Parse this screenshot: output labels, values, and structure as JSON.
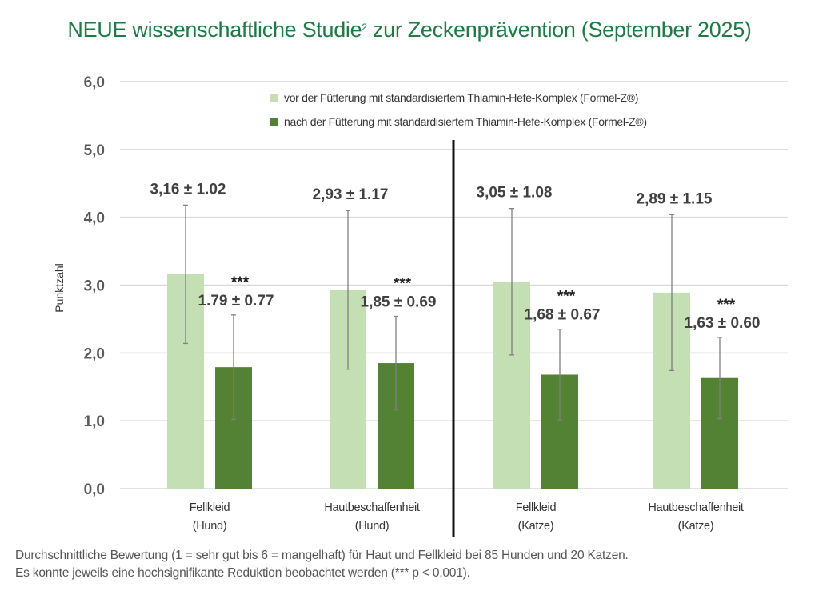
{
  "title": {
    "text": "NEUE wissenschaftliche Studie",
    "superscript": "2",
    "text_after": " zur Zeckenprävention (September 2025)"
  },
  "colors": {
    "title": "#1f7a46",
    "before": "#c4dfb3",
    "after": "#548235",
    "grid": "#d9d9d9",
    "divider": "#111111",
    "label": "#404040"
  },
  "chart_data": {
    "type": "bar",
    "title": "NEUE wissenschaftliche Studie² zur Zeckenprävention (September 2025)",
    "ylabel": "Punktzahl",
    "xlabel": "",
    "ylim": [
      0,
      6
    ],
    "yticks": [
      "0,0",
      "1,0",
      "2,0",
      "3,0",
      "4,0",
      "5,0",
      "6,0"
    ],
    "ytick_values": [
      0,
      1,
      2,
      3,
      4,
      5,
      6
    ],
    "grid": true,
    "legend_position": "top-right",
    "categories": [
      {
        "line1": "Fellkleid",
        "line2": "(Hund)"
      },
      {
        "line1": "Hautbeschaffenheit",
        "line2": "(Hund)"
      },
      {
        "line1": "Fellkleid",
        "line2": "(Katze)"
      },
      {
        "line1": "Hautbeschaffenheit",
        "line2": "(Katze)"
      }
    ],
    "series": [
      {
        "name": "vor der Fütterung mit standardisiertem Thiamin-Hefe-Komplex (Formel-Z®)",
        "values": [
          3.16,
          2.93,
          3.05,
          2.89
        ],
        "errors": [
          1.02,
          1.17,
          1.08,
          1.15
        ],
        "labels": [
          "3,16 ± 1.02",
          "2,93 ± 1.17",
          "3,05 ± 1.08",
          "2,89 ± 1.15"
        ]
      },
      {
        "name": "nach der Fütterung mit standardisiertem Thiamin-Hefe-Komplex (Formel-Z®)",
        "values": [
          1.79,
          1.85,
          1.68,
          1.63
        ],
        "errors": [
          0.77,
          0.69,
          0.67,
          0.6
        ],
        "labels": [
          "1.79 ± 0.77",
          "1,85 ± 0.69",
          "1,68 ± 0.67",
          "1,63 ± 0.60"
        ],
        "significance": [
          "***",
          "***",
          "***",
          "***"
        ]
      }
    ],
    "annotations": [
      "Divider between Hund and Katze groups"
    ]
  },
  "footnote": {
    "line1": "Durchschnittliche Bewertung (1 = sehr gut bis 6 = mangelhaft) für Haut und Fellkleid bei 85 Hunden und 20 Katzen.",
    "line2": "Es konnte jeweils eine hochsignifikante Reduktion beobachtet werden (*** p < 0,001)."
  }
}
